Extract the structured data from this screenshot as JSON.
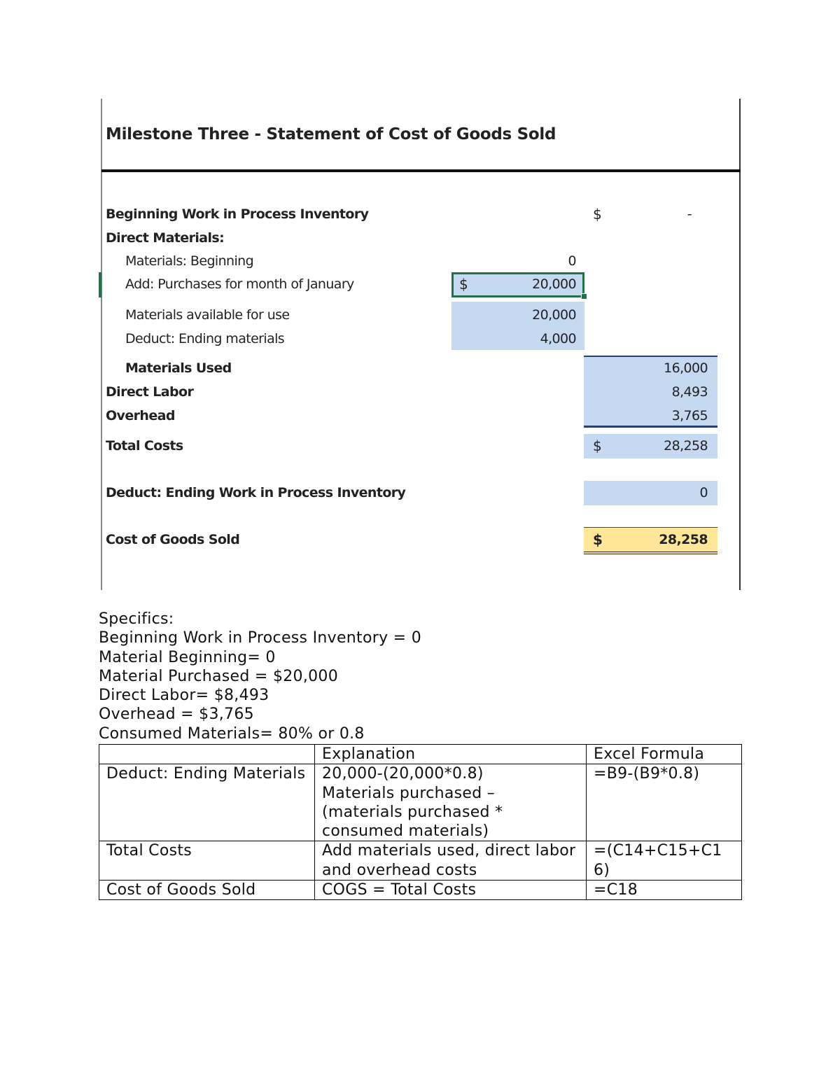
{
  "statement": {
    "title": "Milestone Three - Statement of Cost of Goods Sold",
    "rows": [
      {
        "label": "Beginning Work in Process Inventory",
        "c_currency": "$",
        "c_value": "-"
      },
      {
        "label": "Direct Materials:"
      },
      {
        "label": "Materials: Beginning",
        "b_value": "0"
      },
      {
        "label": "Add: Purchases for month of January",
        "b_currency": "$",
        "b_value": "20,000"
      },
      {
        "label": "Materials available for use",
        "b_value": "20,000"
      },
      {
        "label": "Deduct: Ending materials",
        "b_value": "4,000"
      },
      {
        "label": "Materials Used",
        "c_value": "16,000"
      },
      {
        "label": "Direct Labor",
        "c_value": "8,493"
      },
      {
        "label": "Overhead",
        "c_value": "3,765"
      },
      {
        "label": "Total Costs",
        "c_currency": "$",
        "c_value": "28,258"
      },
      {
        "label": "Deduct: Ending Work in Process Inventory",
        "c_value": "0"
      },
      {
        "label": "Cost of Goods Sold",
        "c_currency": "$",
        "c_value": "28,258"
      }
    ]
  },
  "specifics": {
    "heading": "Specifics:",
    "lines": [
      "Beginning Work in Process Inventory = 0",
      "Material Beginning= 0",
      "Material Purchased = $20,000",
      "Direct Labor= $8,493",
      "Overhead = $3,765",
      "Consumed Materials= 80% or 0.8"
    ]
  },
  "table": {
    "header": [
      "Explanation",
      "Excel Formula"
    ],
    "rows": [
      [
        [
          "Deduct: Ending Materials"
        ],
        [
          "20,000-(20,000*0.8)",
          "Materials purchased – (materials purchased * consumed materials)"
        ],
        [
          "=B9-(B9*0.8)"
        ]
      ],
      [
        [
          "Total Costs"
        ],
        [
          "Add materials used, direct labor and overhead costs"
        ],
        [
          "=(C14+C15+C16)"
        ]
      ],
      [
        [
          "Cost of Goods Sold"
        ],
        [
          "COGS = Total Costs"
        ],
        [
          "=C18"
        ]
      ]
    ]
  }
}
